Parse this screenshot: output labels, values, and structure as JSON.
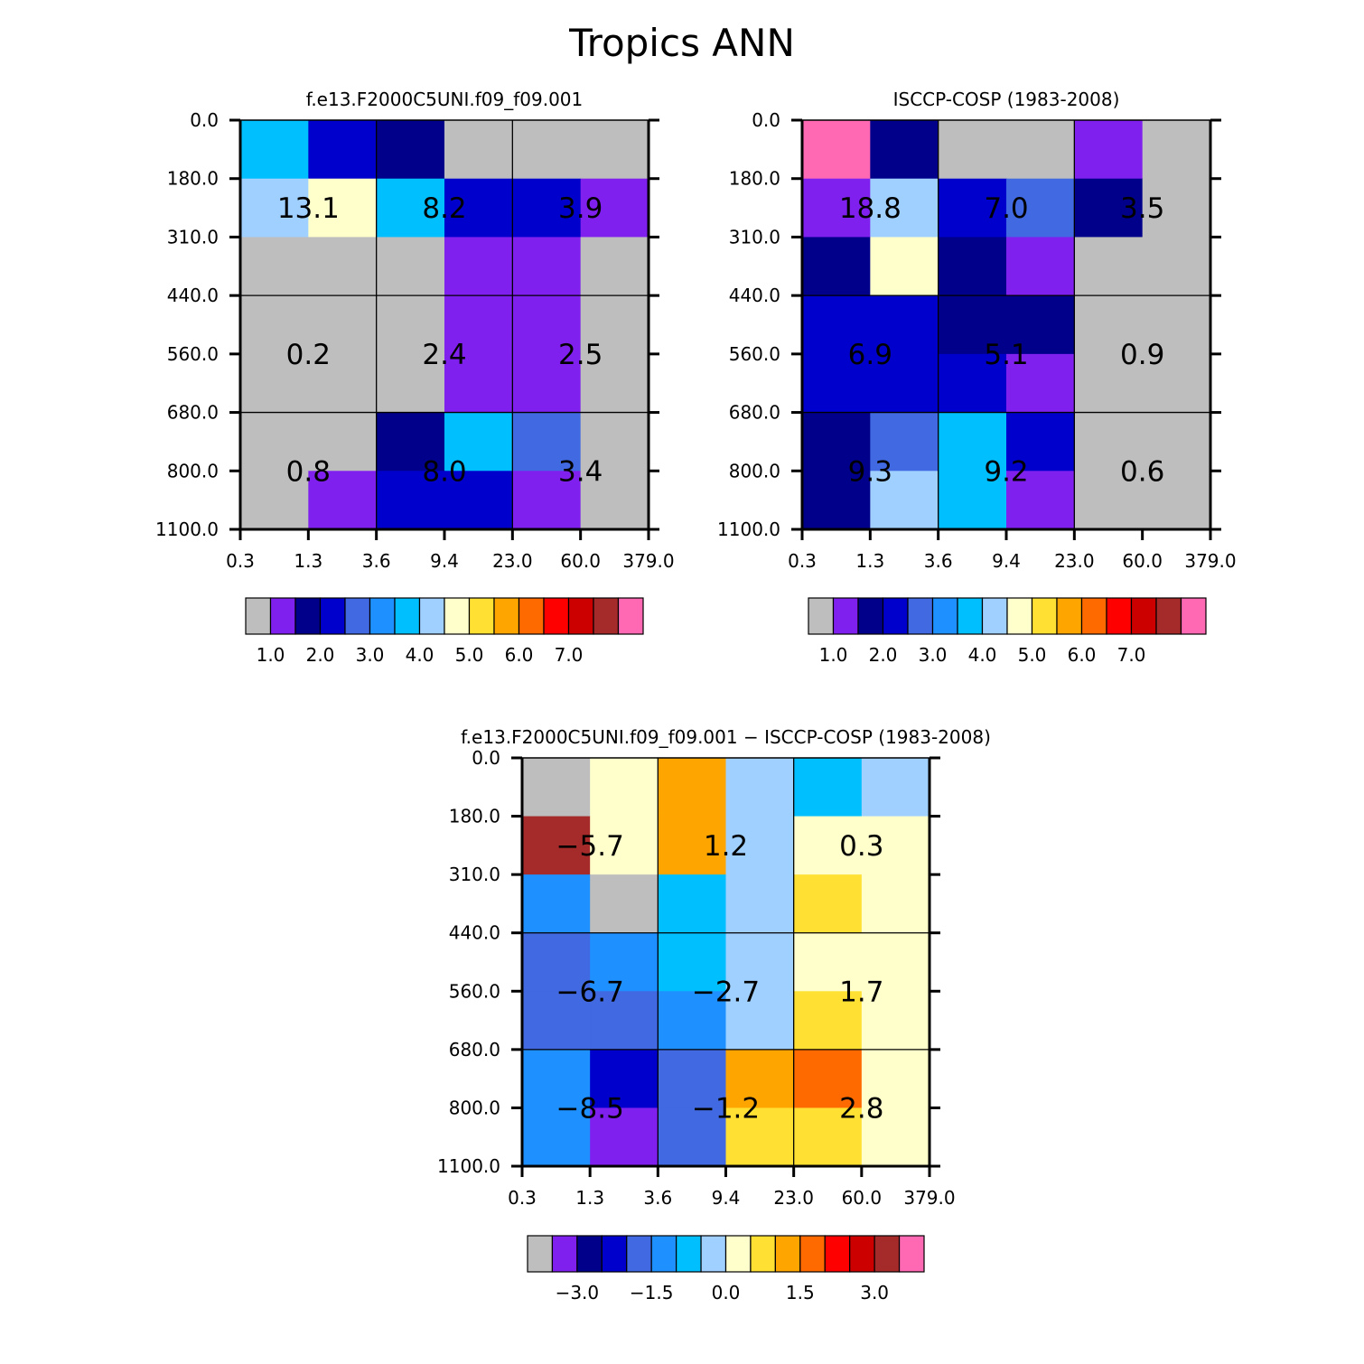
{
  "page_title": "Tropics ANN",
  "x_tick_labels": [
    "0.3",
    "1.3",
    "3.6",
    "9.4",
    "23.0",
    "60.0",
    "379.0"
  ],
  "y_tick_labels": [
    "0.0",
    "180.0",
    "310.0",
    "440.0",
    "560.0",
    "680.0",
    "800.0",
    "1100.0"
  ],
  "colors": {
    "gray": "#bebebe",
    "violet": "#8020ef",
    "navy": "#00008b",
    "medium_blue": "#0000cd",
    "royal_blue": "#4169e1",
    "dodger_blue": "#1e90ff",
    "deep_sky_blue": "#00bfff",
    "light_sky_blue": "#a0d0ff",
    "light_yellow": "#ffffcc",
    "gold": "#ffe033",
    "orange": "#ffa500",
    "dark_orange": "#ff6a00",
    "red": "#ff0000",
    "dark_red": "#cd0000",
    "brown": "#a52a2a",
    "pink": "#ff69b4"
  },
  "chart_data": [
    {
      "type": "heatmap",
      "title": "f.e13.F2000C5UNI.f09_f09.001",
      "x_edges": [
        "0.3",
        "1.3",
        "3.6",
        "9.4",
        "23.0",
        "60.0",
        "379.0"
      ],
      "y_edges": [
        "0.0",
        "180.0",
        "310.0",
        "440.0",
        "560.0",
        "680.0",
        "800.0",
        "1100.0"
      ],
      "cell_colors": [
        [
          "deep_sky_blue",
          "medium_blue",
          "navy",
          "gray",
          "gray",
          "gray"
        ],
        [
          "light_sky_blue",
          "light_yellow",
          "deep_sky_blue",
          "medium_blue",
          "medium_blue",
          "violet"
        ],
        [
          "gray",
          "gray",
          "gray",
          "violet",
          "violet",
          "gray"
        ],
        [
          "gray",
          "gray",
          "gray",
          "violet",
          "violet",
          "gray"
        ],
        [
          "gray",
          "gray",
          "gray",
          "violet",
          "violet",
          "gray"
        ],
        [
          "gray",
          "gray",
          "navy",
          "deep_sky_blue",
          "royal_blue",
          "gray"
        ],
        [
          "gray",
          "violet",
          "medium_blue",
          "medium_blue",
          "violet",
          "gray"
        ]
      ],
      "block_labels": [
        [
          "13.1",
          "8.2",
          "3.9"
        ],
        [
          "0.2",
          "2.4",
          "2.5"
        ],
        [
          "0.8",
          "8.0",
          "3.4"
        ]
      ],
      "colorbar": {
        "colors": [
          "gray",
          "violet",
          "navy",
          "medium_blue",
          "royal_blue",
          "dodger_blue",
          "deep_sky_blue",
          "light_sky_blue",
          "light_yellow",
          "gold",
          "orange",
          "dark_orange",
          "red",
          "dark_red",
          "brown",
          "pink"
        ],
        "labels": [
          "1.0",
          "2.0",
          "3.0",
          "4.0",
          "5.0",
          "6.0",
          "7.0"
        ],
        "label_boundaries": [
          1,
          3,
          5,
          7,
          9,
          11,
          13
        ]
      }
    },
    {
      "type": "heatmap",
      "title": "ISCCP-COSP (1983-2008)",
      "x_edges": [
        "0.3",
        "1.3",
        "3.6",
        "9.4",
        "23.0",
        "60.0",
        "379.0"
      ],
      "y_edges": [
        "0.0",
        "180.0",
        "310.0",
        "440.0",
        "560.0",
        "680.0",
        "800.0",
        "1100.0"
      ],
      "cell_colors": [
        [
          "pink",
          "navy",
          "gray",
          "gray",
          "violet",
          "gray"
        ],
        [
          "violet",
          "light_sky_blue",
          "medium_blue",
          "royal_blue",
          "navy",
          "gray"
        ],
        [
          "navy",
          "light_yellow",
          "navy",
          "violet",
          "gray",
          "gray"
        ],
        [
          "medium_blue",
          "medium_blue",
          "navy",
          "navy",
          "gray",
          "gray"
        ],
        [
          "medium_blue",
          "medium_blue",
          "medium_blue",
          "violet",
          "gray",
          "gray"
        ],
        [
          "navy",
          "royal_blue",
          "deep_sky_blue",
          "medium_blue",
          "gray",
          "gray"
        ],
        [
          "navy",
          "light_sky_blue",
          "deep_sky_blue",
          "violet",
          "gray",
          "gray"
        ]
      ],
      "block_labels": [
        [
          "18.8",
          "7.0",
          "3.5"
        ],
        [
          "6.9",
          "5.1",
          "0.9"
        ],
        [
          "9.3",
          "9.2",
          "0.6"
        ]
      ],
      "colorbar": {
        "colors": [
          "gray",
          "violet",
          "navy",
          "medium_blue",
          "royal_blue",
          "dodger_blue",
          "deep_sky_blue",
          "light_sky_blue",
          "light_yellow",
          "gold",
          "orange",
          "dark_orange",
          "red",
          "dark_red",
          "brown",
          "pink"
        ],
        "labels": [
          "1.0",
          "2.0",
          "3.0",
          "4.0",
          "5.0",
          "6.0",
          "7.0"
        ],
        "label_boundaries": [
          1,
          3,
          5,
          7,
          9,
          11,
          13
        ]
      }
    },
    {
      "type": "heatmap",
      "title": "f.e13.F2000C5UNI.f09_f09.001 − ISCCP-COSP (1983-2008)",
      "x_edges": [
        "0.3",
        "1.3",
        "3.6",
        "9.4",
        "23.0",
        "60.0",
        "379.0"
      ],
      "y_edges": [
        "0.0",
        "180.0",
        "310.0",
        "440.0",
        "560.0",
        "680.0",
        "800.0",
        "1100.0"
      ],
      "cell_colors": [
        [
          "gray",
          "light_yellow",
          "orange",
          "light_sky_blue",
          "deep_sky_blue",
          "light_sky_blue"
        ],
        [
          "brown",
          "light_yellow",
          "orange",
          "light_sky_blue",
          "light_yellow",
          "light_yellow"
        ],
        [
          "dodger_blue",
          "gray",
          "deep_sky_blue",
          "light_sky_blue",
          "gold",
          "light_yellow"
        ],
        [
          "royal_blue",
          "dodger_blue",
          "deep_sky_blue",
          "light_sky_blue",
          "light_yellow",
          "light_yellow"
        ],
        [
          "royal_blue",
          "royal_blue",
          "dodger_blue",
          "light_sky_blue",
          "gold",
          "light_yellow"
        ],
        [
          "dodger_blue",
          "medium_blue",
          "royal_blue",
          "orange",
          "dark_orange",
          "light_yellow"
        ],
        [
          "dodger_blue",
          "violet",
          "royal_blue",
          "gold",
          "gold",
          "light_yellow"
        ]
      ],
      "block_labels": [
        [
          "−5.7",
          "1.2",
          "0.3"
        ],
        [
          "−6.7",
          "−2.7",
          "1.7"
        ],
        [
          "−8.5",
          "−1.2",
          "2.8"
        ]
      ],
      "colorbar": {
        "colors": [
          "gray",
          "violet",
          "navy",
          "medium_blue",
          "royal_blue",
          "dodger_blue",
          "deep_sky_blue",
          "light_sky_blue",
          "light_yellow",
          "gold",
          "orange",
          "dark_orange",
          "red",
          "dark_red",
          "brown",
          "pink"
        ],
        "labels": [
          "−3.0",
          "−1.5",
          "0.0",
          "1.5",
          "3.0"
        ],
        "label_boundaries": [
          2,
          5,
          8,
          11,
          14
        ]
      }
    }
  ]
}
